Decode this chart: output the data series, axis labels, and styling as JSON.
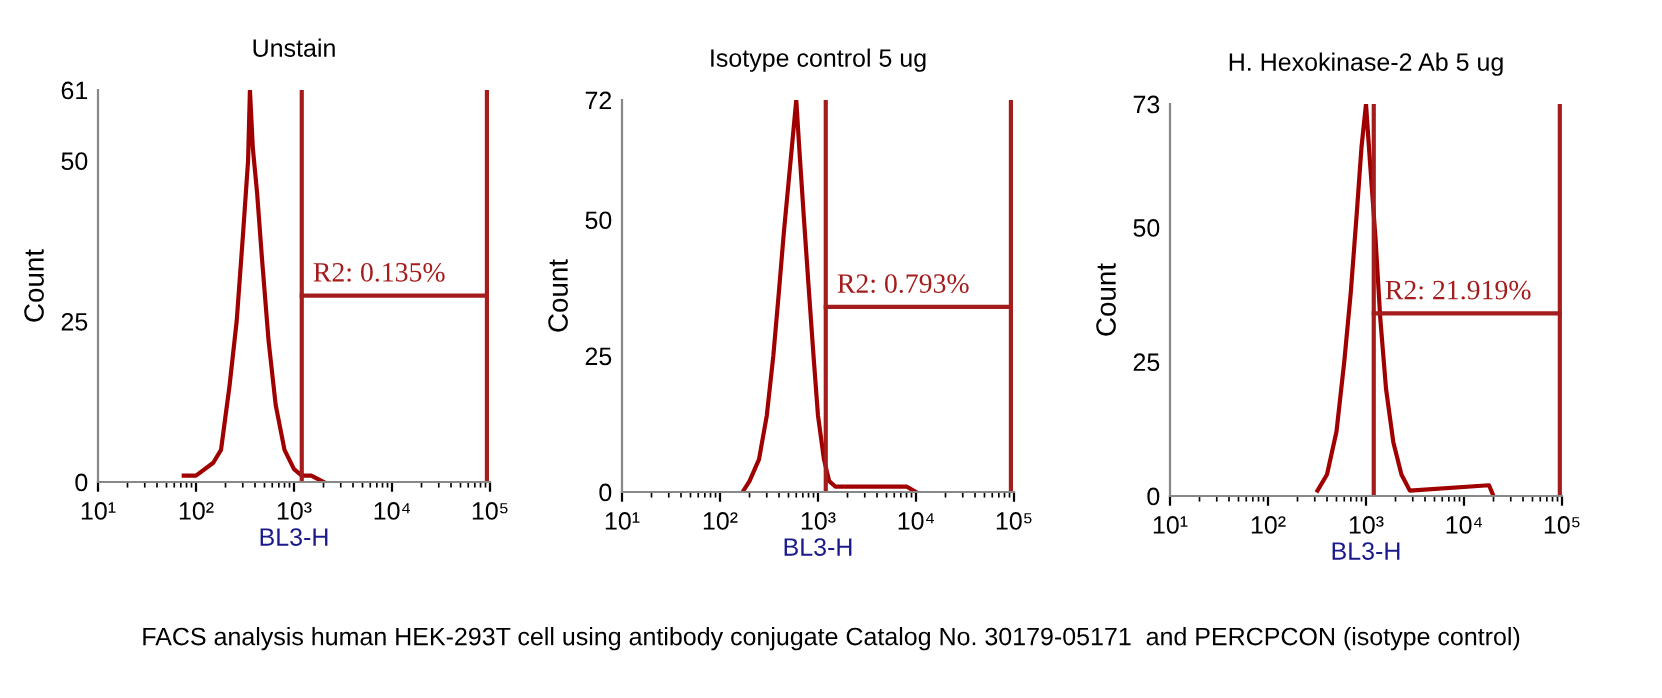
{
  "chart_data": [
    {
      "type": "line",
      "title": "Unstain",
      "xlabel": "BL3-H",
      "ylabel": "Count",
      "log": "x",
      "grid": false,
      "xlim": [
        10,
        100000
      ],
      "xticks": [
        {
          "value": 10,
          "label": "10¹"
        },
        {
          "value": 100,
          "label": "10²"
        },
        {
          "value": 1000,
          "label": "10³"
        },
        {
          "value": 10000,
          "label": "10⁴"
        },
        {
          "value": 100000,
          "label": "10⁵"
        }
      ],
      "ylim": [
        0,
        61
      ],
      "yticks": [
        0,
        25,
        50,
        61
      ],
      "series": [
        {
          "color": "#a00000",
          "x": [
            75,
            100,
            150,
            180,
            220,
            260,
            300,
            340,
            355,
            380,
            420,
            470,
            550,
            650,
            800,
            1000,
            1200,
            1500,
            2000
          ],
          "values": [
            1,
            1,
            3,
            5,
            15,
            25,
            38,
            50,
            61,
            52,
            45,
            35,
            22,
            12,
            5,
            2,
            1,
            1,
            0
          ]
        },
        {
          "color": "#a51c1c",
          "x": [
            1200,
            93000
          ],
          "values": [
            29,
            29
          ]
        }
      ],
      "ref_lines": [
        {
          "axis": "x",
          "value": 1200,
          "color": "#a51c1c"
        },
        {
          "axis": "x",
          "value": 93000,
          "color": "#a51c1c"
        }
      ],
      "annotations": [
        {
          "text": "R2: 0.135%",
          "y": 29
        },
        "FACS analysis human HEK-293T cell using antibody conjugate Catalog No. 30179-05171  and PERCPCON (isotype control)"
      ]
    },
    {
      "type": "line",
      "title": "Isotype control 5 ug",
      "xlabel": "BL3-H",
      "ylabel": "Count",
      "log": "x",
      "grid": false,
      "xlim": [
        10,
        100000
      ],
      "xticks": [
        {
          "value": 10,
          "label": "10¹"
        },
        {
          "value": 100,
          "label": "10²"
        },
        {
          "value": 1000,
          "label": "10³"
        },
        {
          "value": 10000,
          "label": "10⁴"
        },
        {
          "value": 100000,
          "label": "10⁵"
        }
      ],
      "ylim": [
        0,
        72
      ],
      "yticks": [
        0,
        25,
        50,
        72
      ],
      "series": [
        {
          "color": "#a00000",
          "x": [
            170,
            200,
            250,
            300,
            350,
            400,
            450,
            520,
            600,
            650,
            720,
            800,
            900,
            1000,
            1150,
            1300,
            1500,
            2000,
            8000,
            10000
          ],
          "values": [
            0,
            2,
            6,
            14,
            25,
            37,
            48,
            60,
            72,
            62,
            50,
            38,
            25,
            14,
            6,
            2,
            1,
            1,
            1,
            0
          ]
        },
        {
          "color": "#a51c1c",
          "x": [
            1200,
            93000
          ],
          "values": [
            34,
            34
          ]
        }
      ],
      "ref_lines": [
        {
          "axis": "x",
          "value": 1200,
          "color": "#a51c1c"
        },
        {
          "axis": "x",
          "value": 93000,
          "color": "#a51c1c"
        }
      ],
      "annotations": [
        {
          "text": "R2: 0.793%",
          "y": 34
        }
      ]
    },
    {
      "type": "line",
      "title": "H. Hexokinase-2 Ab 5 ug",
      "xlabel": "BL3-H",
      "ylabel": "Count",
      "log": "x",
      "grid": false,
      "xlim": [
        10,
        100000
      ],
      "xticks": [
        {
          "value": 10,
          "label": "10¹"
        },
        {
          "value": 100,
          "label": "10²"
        },
        {
          "value": 1000,
          "label": "10³"
        },
        {
          "value": 10000,
          "label": "10⁴"
        },
        {
          "value": 100000,
          "label": "10⁵"
        }
      ],
      "ylim": [
        0,
        73
      ],
      "yticks": [
        0,
        25,
        50,
        73
      ],
      "series": [
        {
          "color": "#a00000",
          "x": [
            320,
            400,
            500,
            600,
            700,
            800,
            900,
            1000,
            1100,
            1250,
            1400,
            1600,
            1900,
            2300,
            2800,
            18000,
            20000
          ],
          "values": [
            1,
            4,
            12,
            25,
            38,
            52,
            65,
            73,
            62,
            48,
            33,
            20,
            10,
            4,
            1,
            2,
            0
          ]
        },
        {
          "color": "#a51c1c",
          "x": [
            1200,
            95000
          ],
          "values": [
            34,
            34
          ]
        }
      ],
      "ref_lines": [
        {
          "axis": "x",
          "value": 1200,
          "color": "#a51c1c"
        },
        {
          "axis": "x",
          "value": 95000,
          "color": "#a51c1c"
        }
      ],
      "annotations": [
        {
          "text": "R2: 21.919%",
          "y": 34
        }
      ]
    }
  ]
}
